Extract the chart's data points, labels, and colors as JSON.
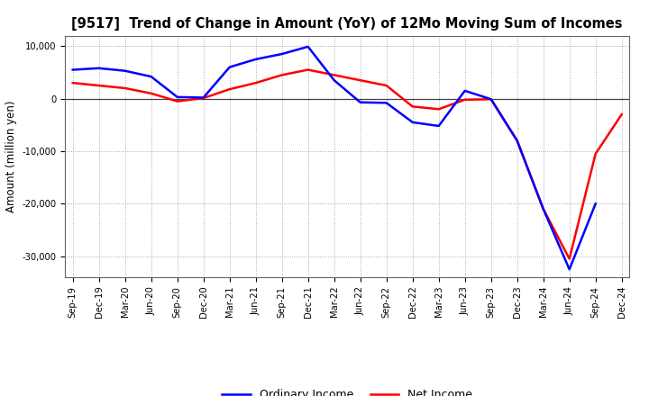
{
  "title": "[9517]  Trend of Change in Amount (YoY) of 12Mo Moving Sum of Incomes",
  "ylabel": "Amount (million yen)",
  "x_labels": [
    "Sep-19",
    "Dec-19",
    "Mar-20",
    "Jun-20",
    "Sep-20",
    "Dec-20",
    "Mar-21",
    "Jun-21",
    "Sep-21",
    "Dec-21",
    "Mar-22",
    "Jun-22",
    "Sep-22",
    "Dec-22",
    "Mar-23",
    "Jun-23",
    "Sep-23",
    "Dec-23",
    "Mar-24",
    "Jun-24",
    "Sep-24",
    "Dec-24"
  ],
  "ordinary_income": [
    5500,
    5800,
    5300,
    4200,
    300,
    200,
    6000,
    7500,
    8500,
    9900,
    3500,
    -700,
    -800,
    -4500,
    -5200,
    1500,
    -100,
    -8000,
    -21000,
    -32500,
    -20000,
    null
  ],
  "net_income": [
    3000,
    2500,
    2000,
    1000,
    -500,
    100,
    1800,
    3000,
    4500,
    5500,
    4500,
    3500,
    2500,
    -1500,
    -2000,
    -200,
    -100,
    -8000,
    -21000,
    -30500,
    -10500,
    -3000
  ],
  "ordinary_income_color": "#0000FF",
  "net_income_color": "#FF0000",
  "ylim": [
    -34000,
    12000
  ],
  "yticks": [
    -30000,
    -20000,
    -10000,
    0,
    10000
  ],
  "background_color": "#FFFFFF",
  "grid_color": "#999999",
  "legend_labels": [
    "Ordinary Income",
    "Net Income"
  ],
  "title_fontsize": 10.5,
  "ylabel_fontsize": 8.5,
  "tick_fontsize": 7.2,
  "legend_fontsize": 9,
  "linewidth": 1.8
}
